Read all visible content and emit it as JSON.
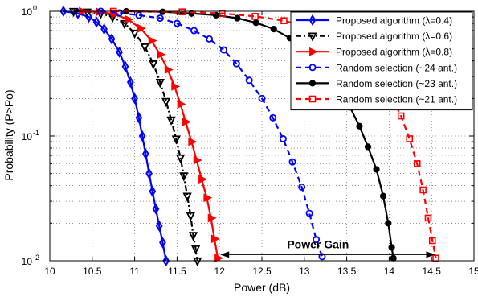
{
  "chart_data": {
    "type": "line",
    "xlabel": "Power (dB)",
    "ylabel": "Probability (P>Po)",
    "xlim": [
      10,
      15
    ],
    "ylim": [
      0.01,
      1
    ],
    "yscale": "log",
    "grid": true,
    "legend_position": "top-right",
    "xticks": [
      "10",
      "10.5",
      "11",
      "11.5",
      "12",
      "12.5",
      "13",
      "13.5",
      "14",
      "14.5",
      "15"
    ],
    "yticks": [
      {
        "value": 0.01,
        "base": "10",
        "exp": "-2"
      },
      {
        "value": 0.1,
        "base": "10",
        "exp": "-1"
      },
      {
        "value": 1,
        "base": "10",
        "exp": "0"
      }
    ],
    "annotation": {
      "text": "Power Gain",
      "from_x": 12.0,
      "to_x": 14.55,
      "y": 0.0112
    },
    "series": [
      {
        "name": "Proposed algorithm (λ=0.4)",
        "color": "#0000ff",
        "dash": "solid",
        "marker": "diamond",
        "points": [
          [
            10.16,
            1.0
          ],
          [
            10.33,
            0.96
          ],
          [
            10.46,
            0.9
          ],
          [
            10.55,
            0.82
          ],
          [
            10.64,
            0.72
          ],
          [
            10.73,
            0.6
          ],
          [
            10.82,
            0.47
          ],
          [
            10.89,
            0.36
          ],
          [
            10.95,
            0.27
          ],
          [
            11.0,
            0.2
          ],
          [
            11.05,
            0.14
          ],
          [
            11.09,
            0.1
          ],
          [
            11.13,
            0.072
          ],
          [
            11.17,
            0.05
          ],
          [
            11.21,
            0.036
          ],
          [
            11.25,
            0.026
          ],
          [
            11.29,
            0.019
          ],
          [
            11.33,
            0.014
          ],
          [
            11.37,
            0.01
          ]
        ]
      },
      {
        "name": "Proposed algorithm (λ=0.6)",
        "color": "#000000",
        "dash": "dashdot",
        "marker": "triangle-down",
        "points": [
          [
            10.28,
            1.0
          ],
          [
            10.44,
            0.99
          ],
          [
            10.6,
            0.96
          ],
          [
            10.74,
            0.9
          ],
          [
            10.88,
            0.8
          ],
          [
            11.0,
            0.67
          ],
          [
            11.12,
            0.52
          ],
          [
            11.22,
            0.38
          ],
          [
            11.3,
            0.27
          ],
          [
            11.37,
            0.19
          ],
          [
            11.43,
            0.135
          ],
          [
            11.49,
            0.095
          ],
          [
            11.54,
            0.067
          ],
          [
            11.58,
            0.048
          ],
          [
            11.62,
            0.033
          ],
          [
            11.66,
            0.023
          ],
          [
            11.69,
            0.016
          ],
          [
            11.72,
            0.0125
          ],
          [
            11.74,
            0.01
          ]
        ]
      },
      {
        "name": "Proposed algorithm (λ=0.8)",
        "color": "#ff0000",
        "dash": "solid",
        "marker": "triangle-right",
        "points": [
          [
            10.38,
            1.0
          ],
          [
            10.58,
            0.99
          ],
          [
            10.76,
            0.95
          ],
          [
            10.92,
            0.86
          ],
          [
            11.07,
            0.73
          ],
          [
            11.2,
            0.58
          ],
          [
            11.3,
            0.45
          ],
          [
            11.39,
            0.34
          ],
          [
            11.47,
            0.25
          ],
          [
            11.54,
            0.18
          ],
          [
            11.6,
            0.13
          ],
          [
            11.67,
            0.09
          ],
          [
            11.73,
            0.064
          ],
          [
            11.79,
            0.045
          ],
          [
            11.85,
            0.032
          ],
          [
            11.9,
            0.022
          ],
          [
            11.94,
            0.015
          ],
          [
            11.98,
            0.0105
          ]
        ]
      },
      {
        "name": "Random selection (~24 ant.)",
        "color": "#0000ff",
        "dash": "dashed",
        "marker": "circle",
        "points": [
          [
            10.6,
            1.0
          ],
          [
            10.82,
            0.97
          ],
          [
            11.05,
            0.93
          ],
          [
            11.3,
            0.88
          ],
          [
            11.5,
            0.8
          ],
          [
            11.7,
            0.7
          ],
          [
            11.88,
            0.6
          ],
          [
            12.05,
            0.49
          ],
          [
            12.2,
            0.38
          ],
          [
            12.35,
            0.28
          ],
          [
            12.5,
            0.2
          ],
          [
            12.63,
            0.14
          ],
          [
            12.75,
            0.095
          ],
          [
            12.86,
            0.062
          ],
          [
            12.97,
            0.039
          ],
          [
            13.06,
            0.024
          ],
          [
            13.14,
            0.0148
          ],
          [
            13.21,
            0.0108
          ]
        ]
      },
      {
        "name": "Random selection (~23 ant.)",
        "color": "#000000",
        "dash": "solid",
        "marker": "circle-filled",
        "points": [
          [
            10.9,
            1.0
          ],
          [
            11.33,
            0.99
          ],
          [
            11.67,
            0.96
          ],
          [
            11.96,
            0.93
          ],
          [
            12.21,
            0.88
          ],
          [
            12.43,
            0.81
          ],
          [
            12.64,
            0.72
          ],
          [
            12.83,
            0.61
          ],
          [
            13.0,
            0.5
          ],
          [
            13.15,
            0.4
          ],
          [
            13.29,
            0.31
          ],
          [
            13.42,
            0.23
          ],
          [
            13.54,
            0.17
          ],
          [
            13.65,
            0.12
          ],
          [
            13.75,
            0.082
          ],
          [
            13.85,
            0.054
          ],
          [
            13.93,
            0.033
          ],
          [
            13.99,
            0.02
          ],
          [
            14.03,
            0.0128
          ],
          [
            14.05,
            0.0105
          ]
        ]
      },
      {
        "name": "Random selection (~21 ant.)",
        "color": "#ff0000",
        "dash": "dashed",
        "marker": "square",
        "points": [
          [
            10.75,
            1.0
          ],
          [
            11.56,
            0.99
          ],
          [
            12.03,
            0.96
          ],
          [
            12.42,
            0.91
          ],
          [
            12.76,
            0.84
          ],
          [
            13.05,
            0.74
          ],
          [
            13.3,
            0.63
          ],
          [
            13.52,
            0.51
          ],
          [
            13.71,
            0.4
          ],
          [
            13.88,
            0.3
          ],
          [
            14.02,
            0.21
          ],
          [
            14.14,
            0.145
          ],
          [
            14.24,
            0.095
          ],
          [
            14.33,
            0.06
          ],
          [
            14.4,
            0.037
          ],
          [
            14.46,
            0.022
          ],
          [
            14.51,
            0.0145
          ],
          [
            14.55,
            0.0105
          ]
        ]
      }
    ]
  }
}
